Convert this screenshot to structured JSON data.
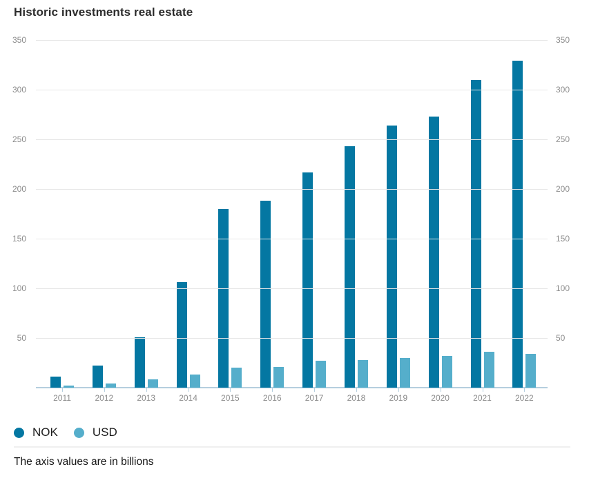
{
  "page": {
    "title": "Historic investments real estate",
    "footnote": "The axis values are in billions"
  },
  "colors": {
    "nok_bar": "#0477a2",
    "usd_bar": "#55aecb",
    "gridline": "#e6e6e6",
    "baseline": "#b5cede",
    "axis_label": "#8c8c8c",
    "title_text": "#2d2d2d"
  },
  "chart_data": {
    "type": "bar",
    "title": "Historic investments real estate",
    "note": "The axis values are in billions",
    "categories": [
      "2011",
      "2012",
      "2013",
      "2014",
      "2015",
      "2016",
      "2017",
      "2018",
      "2019",
      "2020",
      "2021",
      "2022"
    ],
    "series": [
      {
        "name": "NOK",
        "color": "#0477a2",
        "values": [
          11,
          22,
          51,
          106,
          180,
          188,
          217,
          243,
          264,
          273,
          310,
          329
        ]
      },
      {
        "name": "USD",
        "color": "#55aecb",
        "values": [
          2,
          4,
          8,
          13,
          20,
          21,
          27,
          28,
          30,
          32,
          36,
          34
        ]
      }
    ],
    "ylabel": "",
    "xlabel": "",
    "ylim": [
      0,
      350
    ],
    "yticks": [
      50,
      100,
      150,
      200,
      250,
      300,
      350
    ],
    "grid": true,
    "dual_y_axis": true,
    "legend_position": "bottom"
  }
}
